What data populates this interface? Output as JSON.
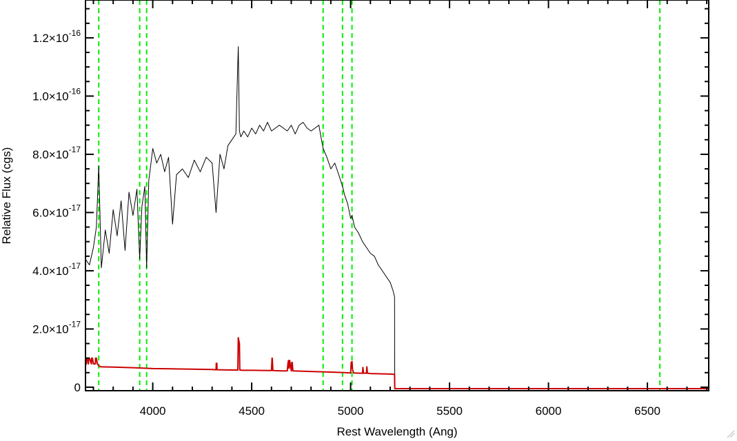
{
  "chart_data": {
    "type": "line",
    "xlabel": "Rest Wavelength (Ang)",
    "ylabel": "Relative Flux (cgs)",
    "xlim": [
      3660,
      6810
    ],
    "ylim": [
      -1.2e-18,
      1.33e-16
    ],
    "x_ticks": [
      {
        "value": 4000,
        "label": "4000"
      },
      {
        "value": 4500,
        "label": "4500"
      },
      {
        "value": 5000,
        "label": "5000"
      },
      {
        "value": 5500,
        "label": "5500"
      },
      {
        "value": 6000,
        "label": "6000"
      },
      {
        "value": 6500,
        "label": "6500"
      }
    ],
    "y_ticks": [
      {
        "value": 0,
        "mantissa": "0",
        "exponent": ""
      },
      {
        "value": 2e-17,
        "mantissa": "2.0×10",
        "exponent": "-17"
      },
      {
        "value": 4e-17,
        "mantissa": "4.0×10",
        "exponent": "-17"
      },
      {
        "value": 6e-17,
        "mantissa": "6.0×10",
        "exponent": "-17"
      },
      {
        "value": 8e-17,
        "mantissa": "8.0×10",
        "exponent": "-17"
      },
      {
        "value": 1e-16,
        "mantissa": "1.0×10",
        "exponent": "-16"
      },
      {
        "value": 1.2e-16,
        "mantissa": "1.2×10",
        "exponent": "-16"
      }
    ],
    "vertical_lines": {
      "color": "#00ee00",
      "x": [
        3727,
        3934,
        3969,
        4861,
        4959,
        5007,
        6563
      ]
    },
    "series": [
      {
        "color": "#000000",
        "x": [
          3660,
          3680,
          3700,
          3715,
          3727,
          3740,
          3760,
          3780,
          3800,
          3820,
          3840,
          3860,
          3880,
          3900,
          3920,
          3934,
          3945,
          3960,
          3969,
          3980,
          4000,
          4020,
          4040,
          4060,
          4080,
          4100,
          4120,
          4150,
          4180,
          4210,
          4240,
          4270,
          4300,
          4320,
          4340,
          4360,
          4380,
          4400,
          4420,
          4432,
          4438,
          4445,
          4460,
          4480,
          4500,
          4520,
          4540,
          4560,
          4580,
          4600,
          4620,
          4640,
          4660,
          4680,
          4700,
          4720,
          4740,
          4760,
          4780,
          4800,
          4820,
          4840,
          4850,
          4861,
          4880,
          4900,
          4920,
          4940,
          4959,
          4970,
          4985,
          5000,
          5007,
          5020,
          5040,
          5060,
          5080,
          5100,
          5120,
          5140,
          5160,
          5180,
          5200,
          5215,
          5222,
          5223,
          6810
        ],
        "y": [
          4.4e-17,
          4.2e-17,
          4.8e-17,
          5.5e-17,
          7.6e-17,
          4.1e-17,
          5.4e-17,
          4.6e-17,
          6.1e-17,
          5.2e-17,
          6.4e-17,
          4.7e-17,
          6.7e-17,
          5.9e-17,
          6.8e-17,
          4.4e-17,
          6.2e-17,
          6.9e-17,
          4.1e-17,
          7.1e-17,
          8.2e-17,
          7.7e-17,
          8e-17,
          7.4e-17,
          7.9e-17,
          5.6e-17,
          7.3e-17,
          7.5e-17,
          7.2e-17,
          7.8e-17,
          7.4e-17,
          7.9e-17,
          7.7e-17,
          6e-17,
          8e-17,
          7.5e-17,
          8.3e-17,
          8.5e-17,
          8.7e-17,
          1.17e-16,
          8.8e-17,
          8.6e-17,
          8.8e-17,
          8.6e-17,
          8.9e-17,
          8.7e-17,
          9e-17,
          8.8e-17,
          9.1e-17,
          8.8e-17,
          8.9e-17,
          9e-17,
          8.9e-17,
          8.8e-17,
          9e-17,
          8.7e-17,
          9e-17,
          9.1e-17,
          8.9e-17,
          8.8e-17,
          8.9e-17,
          9e-17,
          8.6e-17,
          8.2e-17,
          7.9e-17,
          7.5e-17,
          7.7e-17,
          7.3e-17,
          6.9e-17,
          6.6e-17,
          6.3e-17,
          5.8e-17,
          5.9e-17,
          5.5e-17,
          5.3e-17,
          5e-17,
          4.8e-17,
          4.6e-17,
          4.5e-17,
          4.2e-17,
          4e-17,
          3.8e-17,
          3.6e-17,
          3.3e-17,
          3.1e-17,
          -5e-19,
          -5e-19
        ]
      },
      {
        "color": "#cc0000",
        "x": [
          3660,
          3665,
          3666,
          3670,
          3675,
          3676,
          3680,
          3690,
          3691,
          3695,
          3700,
          3710,
          3711,
          3715,
          3720,
          3730,
          3740,
          3800,
          3900,
          4000,
          4100,
          4200,
          4300,
          4320,
          4321,
          4324,
          4325,
          4400,
          4430,
          4432,
          4438,
          4440,
          4445,
          4450,
          4500,
          4600,
          4603,
          4604,
          4607,
          4608,
          4650,
          4680,
          4683,
          4686,
          4689,
          4692,
          4700,
          4703,
          4705,
          4708,
          4800,
          4900,
          4970,
          5000,
          5003,
          5007,
          5010,
          5015,
          5050,
          5060,
          5062,
          5065,
          5080,
          5082,
          5085,
          5100,
          5150,
          5200,
          5222,
          5223,
          6810
        ],
        "y": [
          8e-18,
          8e-18,
          1e-17,
          1e-17,
          8e-18,
          1e-17,
          1e-17,
          8e-18,
          1e-17,
          1e-17,
          8e-18,
          8e-18,
          1e-17,
          1e-17,
          8e-18,
          7.2e-18,
          7e-18,
          6.9e-18,
          6.7e-18,
          6.4e-18,
          6.3e-18,
          6.2e-18,
          6.1e-18,
          6e-18,
          8.2e-18,
          8.2e-18,
          6e-18,
          5.9e-18,
          5.9e-18,
          1.7e-17,
          1.5e-17,
          5.9e-18,
          5.9e-18,
          5.8e-18,
          5.8e-18,
          5.7e-18,
          1e-17,
          1e-17,
          5.7e-18,
          5.7e-18,
          5.6e-18,
          5.6e-18,
          8e-18,
          9.2e-18,
          6.5e-18,
          9.2e-18,
          5.6e-18,
          8.5e-18,
          8.5e-18,
          5.6e-18,
          5.4e-18,
          5.2e-18,
          5e-18,
          4.9e-18,
          8.5e-18,
          8.8e-18,
          6e-18,
          4.9e-18,
          4.8e-18,
          4.8e-18,
          6.8e-18,
          4.8e-18,
          4.8e-18,
          7e-18,
          4.8e-18,
          4.7e-18,
          4.6e-18,
          4.5e-18,
          4.4e-18,
          -5e-19,
          -5e-19
        ]
      }
    ]
  }
}
